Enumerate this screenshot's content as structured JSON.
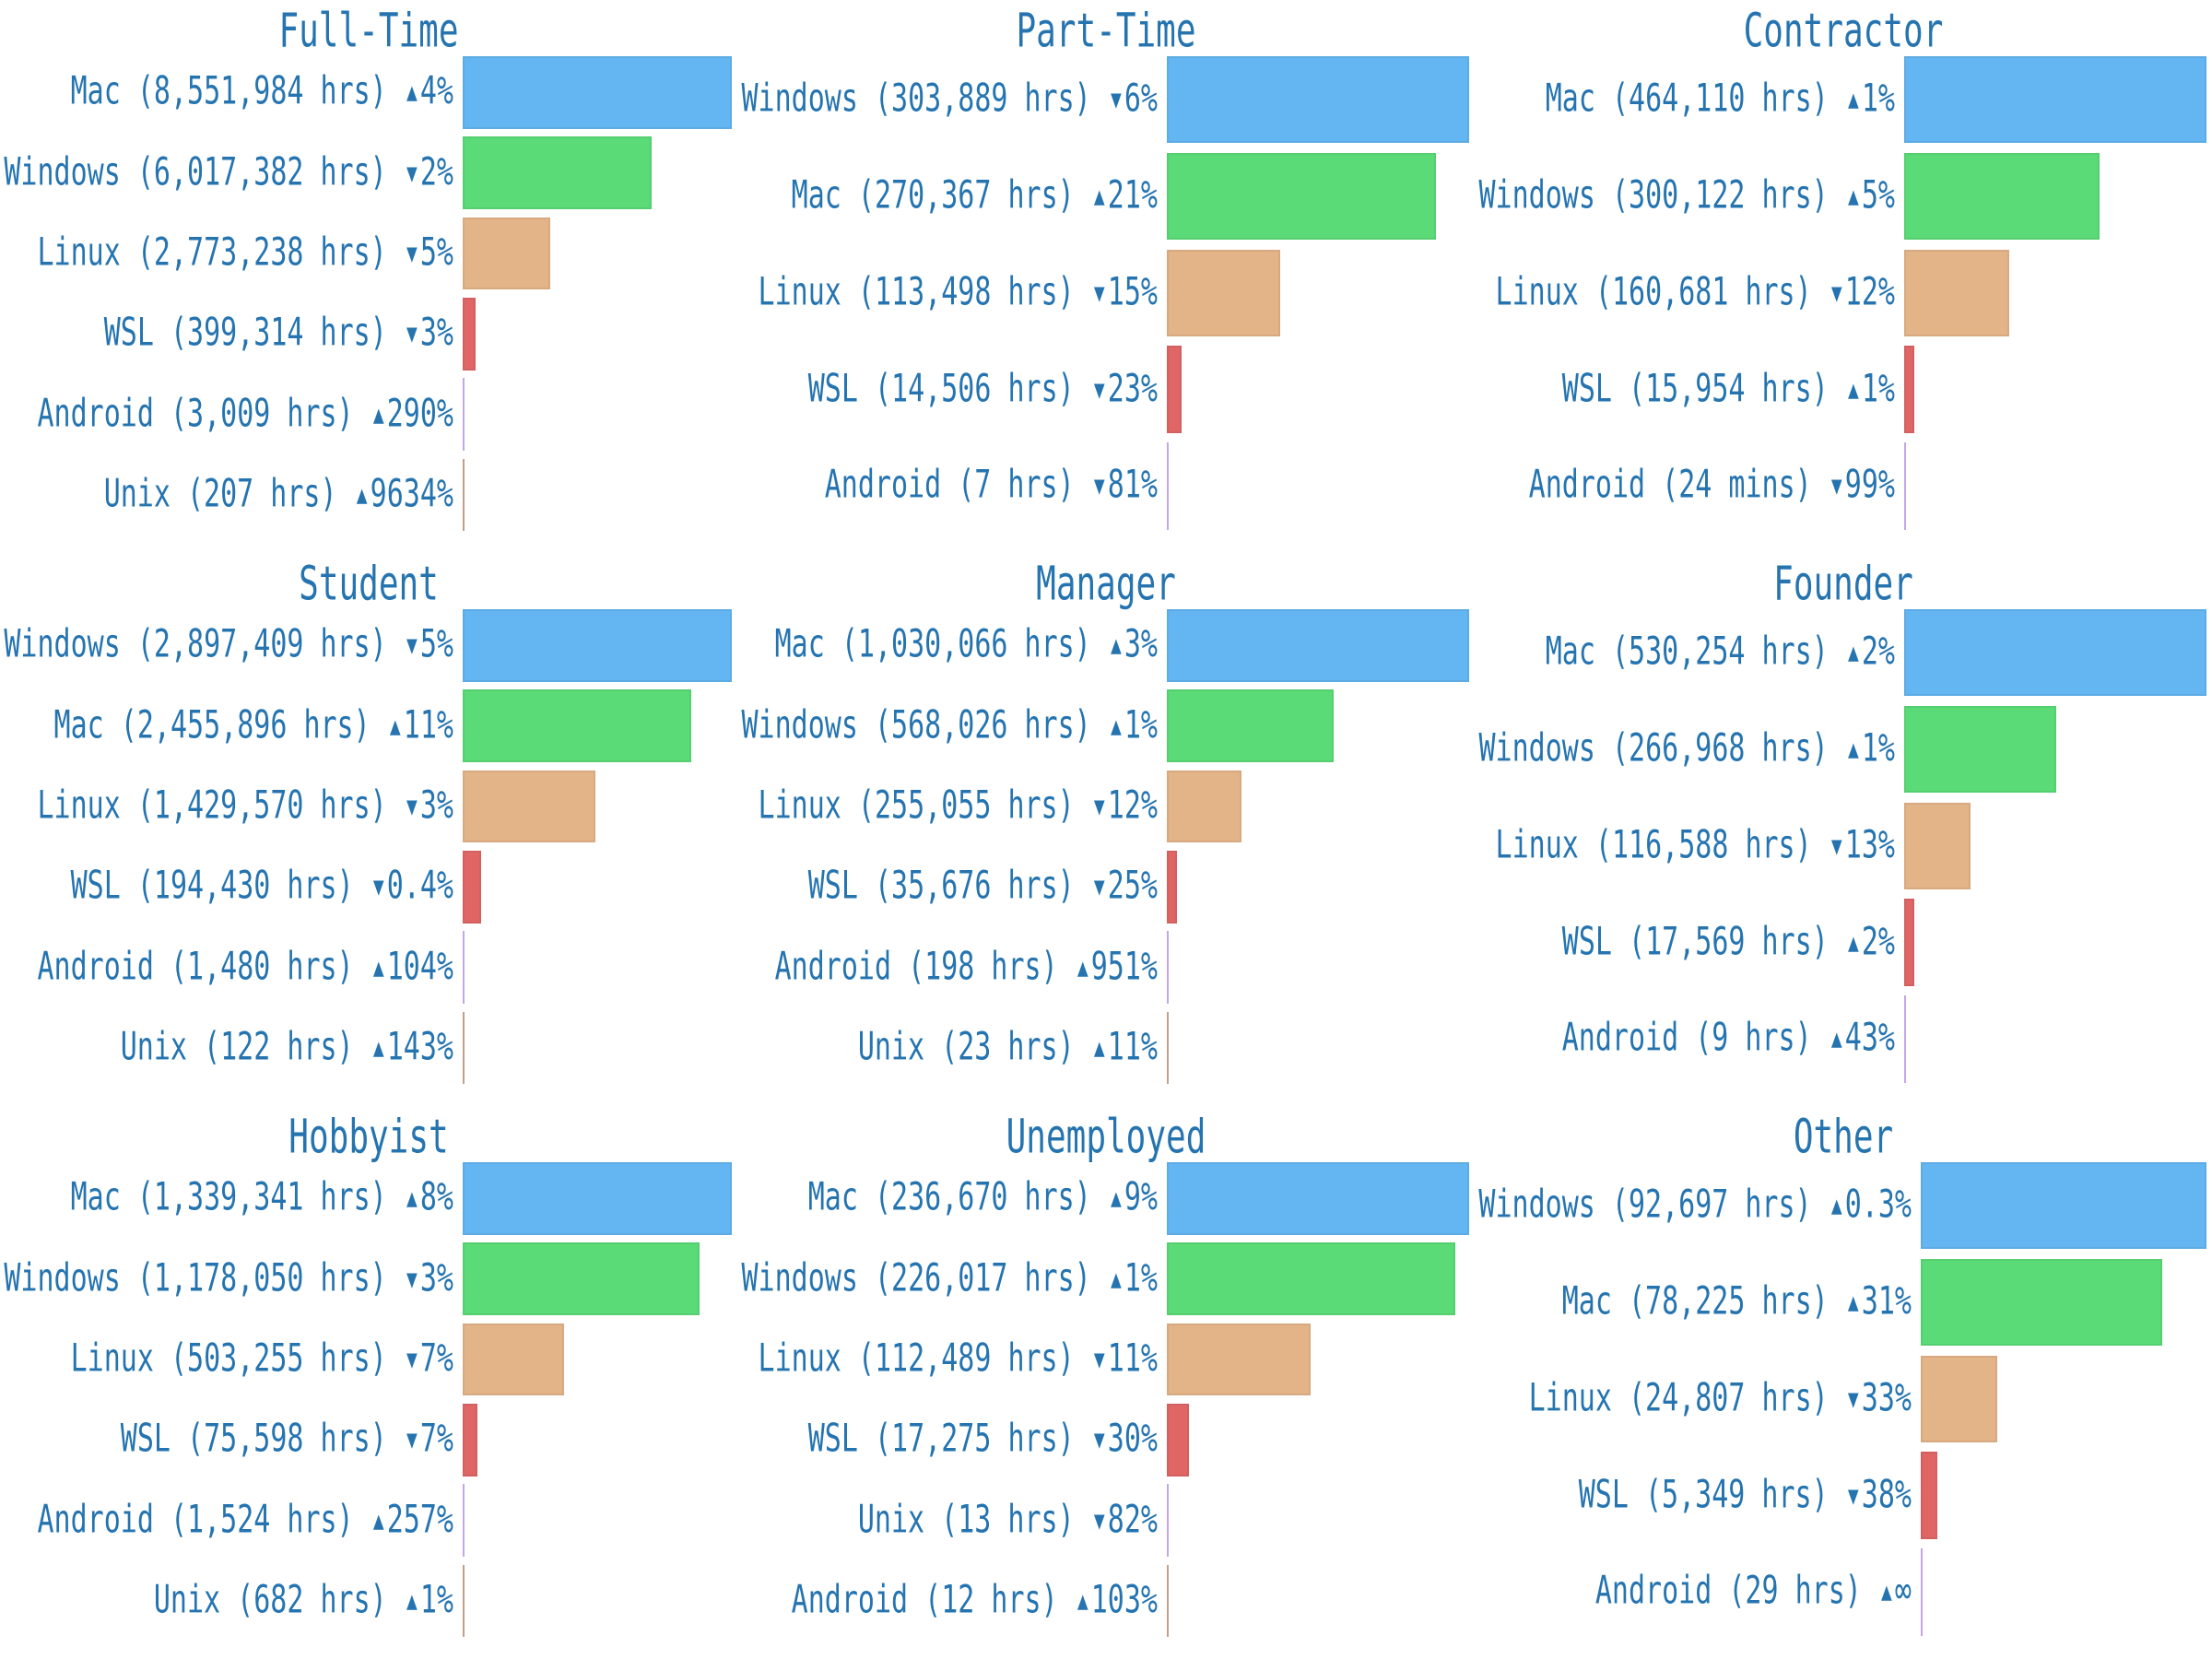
{
  "chart_data": [
    {
      "type": "bar",
      "orientation": "horizontal",
      "title": "Full-Time",
      "rows": [
        {
          "label": "Mac (8,551,984 hrs)",
          "change": "▴4%",
          "value": 8551984
        },
        {
          "label": "Windows (6,017,382 hrs)",
          "change": "▾2%",
          "value": 6017382
        },
        {
          "label": "Linux (2,773,238 hrs)",
          "change": "▾5%",
          "value": 2773238
        },
        {
          "label": "WSL (399,314 hrs)",
          "change": "▾3%",
          "value": 399314
        },
        {
          "label": "Android (3,009 hrs)",
          "change": "▴290%",
          "value": 3009
        },
        {
          "label": "Unix (207 hrs)",
          "change": "▴9634%",
          "value": 207
        }
      ]
    },
    {
      "type": "bar",
      "orientation": "horizontal",
      "title": "Part-Time",
      "rows": [
        {
          "label": "Windows (303,889 hrs)",
          "change": "▾6%",
          "value": 303889
        },
        {
          "label": "Mac (270,367 hrs)",
          "change": "▴21%",
          "value": 270367
        },
        {
          "label": "Linux (113,498 hrs)",
          "change": "▾15%",
          "value": 113498
        },
        {
          "label": "WSL (14,506 hrs)",
          "change": "▾23%",
          "value": 14506
        },
        {
          "label": "Android (7 hrs)",
          "change": "▾81%",
          "value": 7
        }
      ]
    },
    {
      "type": "bar",
      "orientation": "horizontal",
      "title": "Contractor",
      "rows": [
        {
          "label": "Mac (464,110 hrs)",
          "change": "▴1%",
          "value": 464110
        },
        {
          "label": "Windows (300,122 hrs)",
          "change": "▴5%",
          "value": 300122
        },
        {
          "label": "Linux (160,681 hrs)",
          "change": "▾12%",
          "value": 160681
        },
        {
          "label": "WSL (15,954 hrs)",
          "change": "▴1%",
          "value": 15954
        },
        {
          "label": "Android (24 mins)",
          "change": "▾99%",
          "value": 0.4
        }
      ]
    },
    {
      "type": "bar",
      "orientation": "horizontal",
      "title": "Student",
      "rows": [
        {
          "label": "Windows (2,897,409 hrs)",
          "change": "▾5%",
          "value": 2897409
        },
        {
          "label": "Mac (2,455,896 hrs)",
          "change": "▴11%",
          "value": 2455896
        },
        {
          "label": "Linux (1,429,570 hrs)",
          "change": "▾3%",
          "value": 1429570
        },
        {
          "label": "WSL (194,430 hrs)",
          "change": "▾0.4%",
          "value": 194430
        },
        {
          "label": "Android (1,480 hrs)",
          "change": "▴104%",
          "value": 1480
        },
        {
          "label": "Unix (122 hrs)",
          "change": "▴143%",
          "value": 122
        }
      ]
    },
    {
      "type": "bar",
      "orientation": "horizontal",
      "title": "Manager",
      "rows": [
        {
          "label": "Mac (1,030,066 hrs)",
          "change": "▴3%",
          "value": 1030066
        },
        {
          "label": "Windows (568,026 hrs)",
          "change": "▴1%",
          "value": 568026
        },
        {
          "label": "Linux (255,055 hrs)",
          "change": "▾12%",
          "value": 255055
        },
        {
          "label": "WSL (35,676 hrs)",
          "change": "▾25%",
          "value": 35676
        },
        {
          "label": "Android (198 hrs)",
          "change": "▴951%",
          "value": 198
        },
        {
          "label": "Unix (23 hrs)",
          "change": "▴11%",
          "value": 23
        }
      ]
    },
    {
      "type": "bar",
      "orientation": "horizontal",
      "title": "Founder",
      "rows": [
        {
          "label": "Mac (530,254 hrs)",
          "change": "▴2%",
          "value": 530254
        },
        {
          "label": "Windows (266,968 hrs)",
          "change": "▴1%",
          "value": 266968
        },
        {
          "label": "Linux (116,588 hrs)",
          "change": "▾13%",
          "value": 116588
        },
        {
          "label": "WSL (17,569 hrs)",
          "change": "▴2%",
          "value": 17569
        },
        {
          "label": "Android (9 hrs)",
          "change": "▴43%",
          "value": 9
        }
      ]
    },
    {
      "type": "bar",
      "orientation": "horizontal",
      "title": "Hobbyist",
      "rows": [
        {
          "label": "Mac (1,339,341 hrs)",
          "change": "▴8%",
          "value": 1339341
        },
        {
          "label": "Windows (1,178,050 hrs)",
          "change": "▾3%",
          "value": 1178050
        },
        {
          "label": "Linux (503,255 hrs)",
          "change": "▾7%",
          "value": 503255
        },
        {
          "label": "WSL (75,598 hrs)",
          "change": "▾7%",
          "value": 75598
        },
        {
          "label": "Android (1,524 hrs)",
          "change": "▴257%",
          "value": 1524
        },
        {
          "label": "Unix (682 hrs)",
          "change": "▴1%",
          "value": 682
        }
      ]
    },
    {
      "type": "bar",
      "orientation": "horizontal",
      "title": "Unemployed",
      "rows": [
        {
          "label": "Mac (236,670 hrs)",
          "change": "▴9%",
          "value": 236670
        },
        {
          "label": "Windows (226,017 hrs)",
          "change": "▴1%",
          "value": 226017
        },
        {
          "label": "Linux (112,489 hrs)",
          "change": "▾11%",
          "value": 112489
        },
        {
          "label": "WSL (17,275 hrs)",
          "change": "▾30%",
          "value": 17275
        },
        {
          "label": "Unix (13 hrs)",
          "change": "▾82%",
          "value": 13
        },
        {
          "label": "Android (12 hrs)",
          "change": "▴103%",
          "value": 12
        }
      ]
    },
    {
      "type": "bar",
      "orientation": "horizontal",
      "title": "Other",
      "rows": [
        {
          "label": "Windows (92,697 hrs)",
          "change": "▴0.3%",
          "value": 92697
        },
        {
          "label": "Mac (78,225 hrs)",
          "change": "▴31%",
          "value": 78225
        },
        {
          "label": "Linux (24,807 hrs)",
          "change": "▾33%",
          "value": 24807
        },
        {
          "label": "WSL (5,349 hrs)",
          "change": "▾38%",
          "value": 5349
        },
        {
          "label": "Android (29 hrs)",
          "change": "▴∞",
          "value": 29
        }
      ]
    }
  ],
  "colors": {
    "text": "#2574b0",
    "rank_colors": [
      "#63b6f1",
      "#5bdb77",
      "#e4b489",
      "#e06666",
      "#c4a6e6",
      "#c4a08a"
    ]
  }
}
